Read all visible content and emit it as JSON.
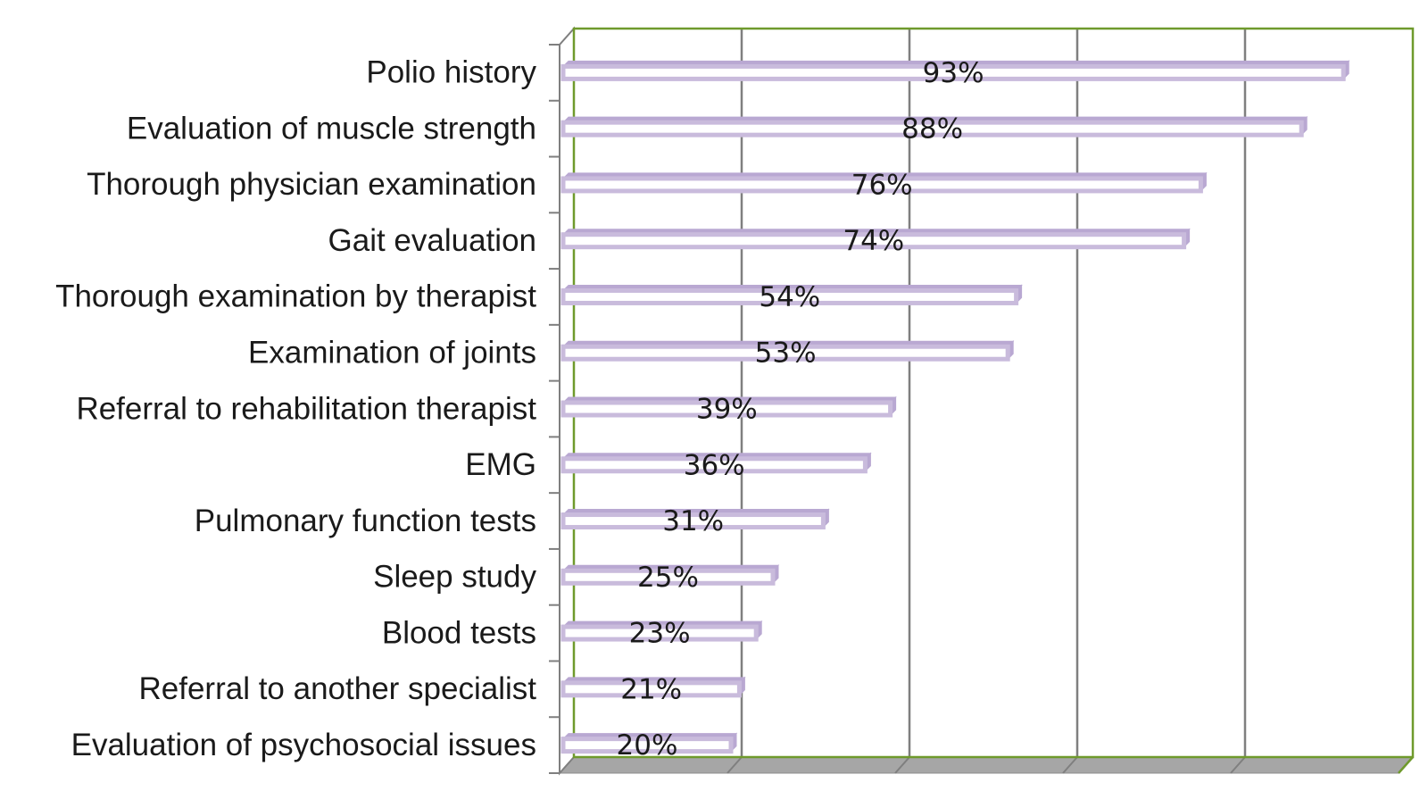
{
  "chart_data": {
    "type": "bar",
    "orientation": "horizontal",
    "categories": [
      "Polio history",
      "Evaluation of muscle strength",
      "Thorough physician examination",
      "Gait evaluation",
      "Thorough examination by therapist",
      "Examination of joints",
      "Referral to rehabilitation therapist",
      "EMG",
      "Pulmonary function tests",
      "Sleep study",
      "Blood tests",
      "Referral to another specialist",
      "Evaluation of psychosocial issues"
    ],
    "values": [
      93,
      88,
      76,
      74,
      54,
      53,
      39,
      36,
      31,
      25,
      23,
      21,
      20
    ],
    "value_labels": [
      "93%",
      "88%",
      "76%",
      "74%",
      "54%",
      "53%",
      "39%",
      "36%",
      "31%",
      "25%",
      "23%",
      "21%",
      "20%"
    ],
    "xlim": [
      0,
      100
    ],
    "grid": true,
    "legend": "none",
    "bar_fill": "#ffffff",
    "bar_outline": "#c9bbdc",
    "bar_top": "#b9a8d2",
    "plot_border": "#6f9a2c",
    "gridline_color": "#7f7f7f",
    "floor_color": "#a6a6a6"
  }
}
